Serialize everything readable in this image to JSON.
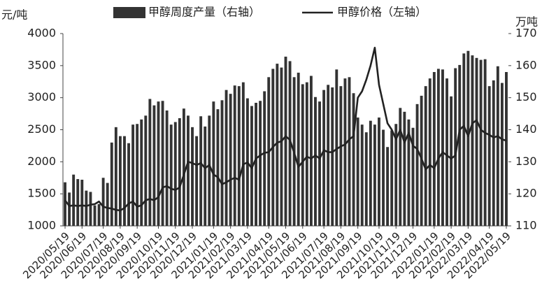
{
  "chart_data": {
    "type": "bar-line",
    "y_label": "元/吨",
    "y2_label": "万吨",
    "categories": [
      "2020/05/19",
      null,
      null,
      null,
      "2020/06/19",
      null,
      null,
      null,
      null,
      "2020/07/19",
      null,
      null,
      null,
      "2020/08/19",
      null,
      null,
      null,
      "2020/09/19",
      null,
      null,
      null,
      null,
      "2020/10/19",
      null,
      null,
      null,
      "2020/11/19",
      null,
      null,
      null,
      "2020/12/19",
      null,
      null,
      null,
      null,
      "2021/01/19",
      null,
      null,
      null,
      "2021/02/19",
      null,
      null,
      null,
      "2021/03/19",
      null,
      null,
      null,
      null,
      "2021/04/19",
      null,
      null,
      null,
      "2021/05/19",
      null,
      null,
      null,
      "2021/06/19",
      null,
      null,
      null,
      null,
      "2021/07/19",
      null,
      null,
      null,
      "2021/08/19",
      null,
      null,
      null,
      "2021/09/19",
      null,
      null,
      null,
      null,
      "2021/10/19",
      null,
      null,
      null,
      "2021/11/19",
      null,
      null,
      null,
      "2021/12/19",
      null,
      null,
      null,
      null,
      "2022/01/19",
      null,
      null,
      null,
      "2022/02/19",
      null,
      null,
      null,
      "2022/03/19",
      null,
      null,
      null,
      null,
      "2022/04/19",
      null,
      null,
      null,
      "2022/05/19"
    ],
    "series": [
      {
        "name": "甲醇周度产量（右轴）",
        "kind": "bar",
        "axis": "y2",
        "color": "#333333",
        "values": [
          123.6,
          120.4,
          126,
          124.6,
          124.4,
          121,
          120.6,
          116.4,
          116.8,
          125,
          123.4,
          136,
          140.8,
          138,
          138,
          135.8,
          141.6,
          141.8,
          143.2,
          144.4,
          149.6,
          147.6,
          148.8,
          149,
          146,
          141.6,
          142.4,
          143.6,
          146.6,
          144.4,
          140.8,
          138,
          144.2,
          141,
          144.4,
          148.8,
          146.4,
          149.2,
          152.4,
          151.2,
          153.8,
          153.6,
          154.8,
          149.8,
          147.4,
          148.4,
          149,
          152,
          156.4,
          159,
          160.6,
          159.4,
          162.8,
          161.4,
          156.4,
          157.8,
          154.2,
          154.8,
          156.8,
          150.2,
          148.8,
          152.4,
          154,
          153.2,
          158.8,
          153.6,
          156,
          156.4,
          151.4,
          143.8,
          141.6,
          139.2,
          142.8,
          141.6,
          143.8,
          140,
          134.6,
          139.8,
          141.8,
          146.8,
          145.6,
          143.2,
          140.6,
          148,
          150.6,
          153.6,
          156,
          158,
          159,
          158.8,
          156,
          150.4,
          159.2,
          160.2,
          163.8,
          164.6,
          163.2,
          162.4,
          161.8,
          162,
          153.6,
          155.4,
          159.8,
          154.6,
          158
        ]
      },
      {
        "name": "甲醇价格（左轴）",
        "kind": "line",
        "axis": "y",
        "color": "#222222",
        "values": [
          1400,
          1310,
          1320,
          1310,
          1320,
          1310,
          1330,
          1340,
          1380,
          1300,
          1280,
          1270,
          1250,
          1240,
          1280,
          1350,
          1380,
          1300,
          1320,
          1400,
          1420,
          1400,
          1450,
          1600,
          1620,
          1580,
          1560,
          1600,
          1800,
          2000,
          1980,
          1950,
          1980,
          1900,
          1950,
          1800,
          1760,
          1650,
          1680,
          1720,
          1750,
          1720,
          1960,
          1990,
          1900,
          2050,
          2100,
          2140,
          2150,
          2230,
          2300,
          2320,
          2400,
          2340,
          2140,
          1920,
          2000,
          2080,
          2050,
          2100,
          2050,
          2180,
          2150,
          2150,
          2200,
          2240,
          2270,
          2350,
          2400,
          3000,
          3100,
          3280,
          3500,
          3780,
          3200,
          2900,
          2600,
          2500,
          2350,
          2500,
          2300,
          2450,
          2250,
          2200,
          2050,
          1880,
          1950,
          1900,
          2050,
          2150,
          2100,
          2050,
          2100,
          2500,
          2560,
          2400,
          2600,
          2650,
          2500,
          2450,
          2420,
          2380,
          2400,
          2350,
          2330
        ]
      }
    ],
    "ylim": [
      1000,
      4000
    ],
    "yticks": [
      1000,
      1500,
      2000,
      2500,
      3000,
      3500,
      4000
    ],
    "y2lim": [
      110,
      170
    ],
    "y2ticks": [
      110,
      120,
      130,
      140,
      150,
      160,
      170
    ],
    "legend": "top"
  }
}
